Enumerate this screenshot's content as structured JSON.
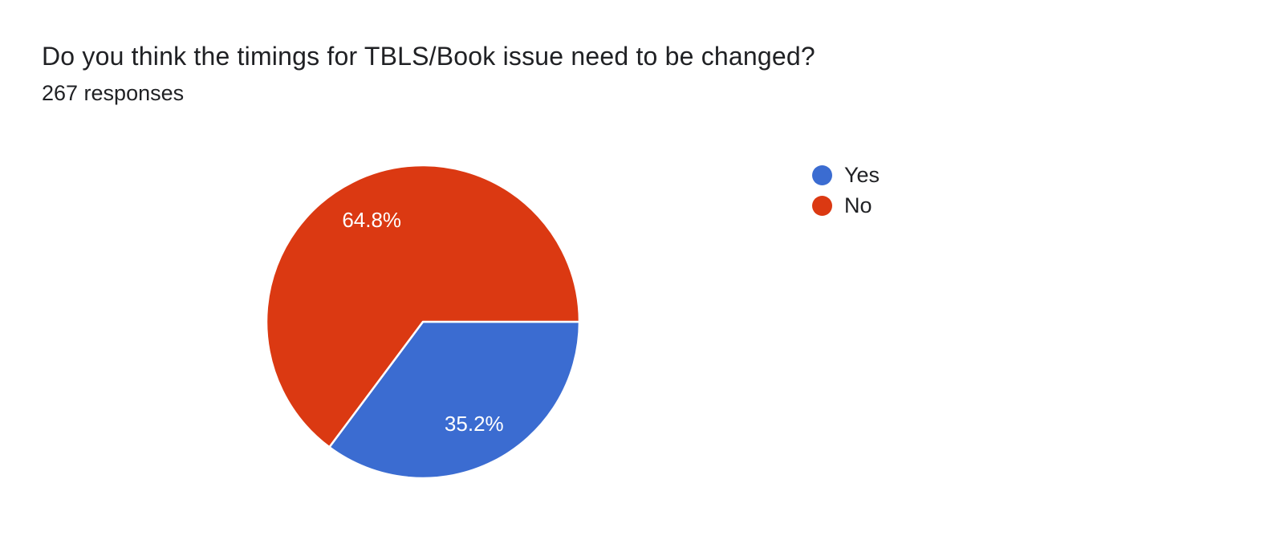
{
  "header": {
    "title": "Do you think the timings for TBLS/Book issue need to be changed?",
    "responses_label": "267 responses"
  },
  "chart_data": {
    "type": "pie",
    "title": "Do you think the timings for TBLS/Book issue need to be changed?",
    "subtitle": "267 responses",
    "total_responses_shown": "267",
    "start_angle": "3-o-clock",
    "direction": "clockwise",
    "slices": [
      {
        "label": "Yes",
        "value_pct": 35.2,
        "data_label": "35.2%",
        "color": "#3B6CD1"
      },
      {
        "label": "No",
        "value_pct": 64.8,
        "data_label": "64.8%",
        "color": "#DB3912"
      }
    ],
    "legend": {
      "position": "right",
      "entries": [
        "Yes",
        "No"
      ]
    },
    "slice_label_color": "#ffffff",
    "slice_stroke_color": "#ffffff",
    "background_color": "#ffffff",
    "title_color": "#202124",
    "legend_text_color": "#202124"
  }
}
